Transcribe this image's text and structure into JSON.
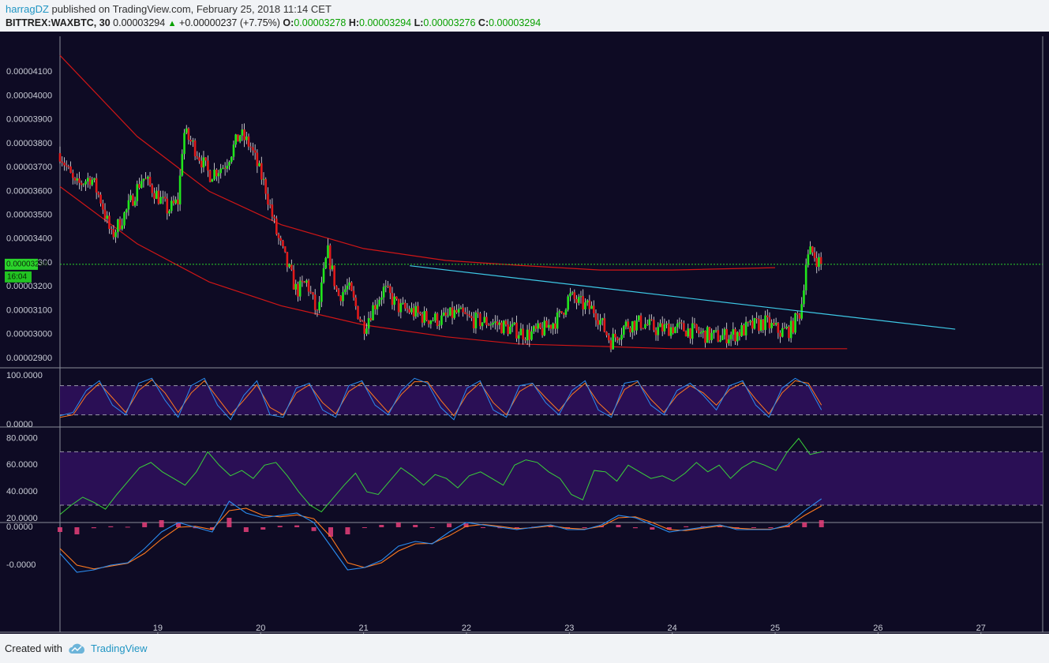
{
  "header": {
    "author": "harragDZ",
    "published_text": "published on TradingView.com, February 25, 2018 11:14 CET",
    "symbol": "BITTREX:WAXBTC, 30",
    "last_price": "0.00003294",
    "change_arrow": "▲",
    "change": "+0.00000237 (+7.75%)",
    "o_label": "O:",
    "o_value": "0.00003278",
    "h_label": "H:",
    "h_value": "0.00003294",
    "l_label": "L:",
    "l_value": "0.00003276",
    "c_label": "C:",
    "c_value": "0.00003294"
  },
  "footer": {
    "created_with": "Created with",
    "brand": "TradingView"
  },
  "colors": {
    "background": "#0e0b24",
    "candle_up": "#21e61c",
    "candle_down": "#e01a1a",
    "wick": "#e8e8e8",
    "trendline": "#3ec9e6",
    "channel": "#d01616",
    "last_price_line": "#2bd42b",
    "stoch_k": "#2b8cf0",
    "stoch_d": "#ff7a1f",
    "rsi": "#3ad13a",
    "band_fill": "#2a0f55",
    "macd_hist": "#e8407a"
  },
  "chart_data": [
    {
      "type": "candlestick",
      "name": "Price",
      "interval": "30",
      "y_ticks": [
        "0.00004100",
        "0.00004000",
        "0.00003900",
        "0.00003800",
        "0.00003700",
        "0.00003600",
        "0.00003500",
        "0.00003400",
        "0.00003300",
        "0.00003200",
        "0.00003100",
        "0.00003000",
        "0.00002900"
      ],
      "ylim": [
        2.86e-05,
        4.25e-05
      ],
      "x_ticks": [
        "19",
        "20",
        "21",
        "22",
        "23",
        "24",
        "25",
        "26",
        "27"
      ],
      "xlim": [
        18.05,
        27.6
      ],
      "last_price_label": "0.00003294",
      "countdown_label": "16:04",
      "close_series": {
        "x": [
          18.05,
          18.2,
          18.35,
          18.45,
          18.55,
          18.7,
          18.85,
          18.95,
          19.1,
          19.2,
          19.25,
          19.35,
          19.5,
          19.65,
          19.8,
          19.9,
          20.05,
          20.15,
          20.25,
          20.35,
          20.45,
          20.55,
          20.65,
          20.75,
          20.85,
          21.0,
          21.1,
          21.2,
          21.35,
          21.45,
          21.6,
          21.75,
          21.9,
          22.05,
          22.25,
          22.45,
          22.6,
          22.75,
          22.9,
          23.0,
          23.1,
          23.25,
          23.4,
          23.55,
          23.7,
          23.85,
          24.0,
          24.15,
          24.3,
          24.45,
          24.6,
          24.75,
          24.9,
          25.05,
          25.15,
          25.25,
          25.3,
          25.35,
          25.45
        ],
        "y": [
          3.76e-05,
          3.62e-05,
          3.66e-05,
          3.56e-05,
          3.41e-05,
          3.52e-05,
          3.66e-05,
          3.61e-05,
          3.52e-05,
          3.56e-05,
          3.85e-05,
          3.79e-05,
          3.67e-05,
          3.71e-05,
          3.84e-05,
          3.79e-05,
          3.61e-05,
          3.43e-05,
          3.3e-05,
          3.18e-05,
          3.22e-05,
          3.08e-05,
          3.35e-05,
          3.16e-05,
          3.2e-05,
          3.03e-05,
          3.12e-05,
          3.19e-05,
          3.11e-05,
          3.1e-05,
          3.07e-05,
          3.06e-05,
          3.09e-05,
          3.06e-05,
          3.05e-05,
          3.02e-05,
          3e-05,
          3.02e-05,
          3.07e-05,
          3.16e-05,
          3.13e-05,
          3.1e-05,
          2.97e-05,
          3.04e-05,
          3.05e-05,
          3.02e-05,
          3.03e-05,
          3.02e-05,
          3e-05,
          2.99e-05,
          3e-05,
          3.03e-05,
          3.05e-05,
          3.01e-05,
          3.02e-05,
          3.1e-05,
          3.3e-05,
          3.35e-05,
          3.29e-05
        ]
      },
      "trendline": {
        "x": [
          21.45,
          26.75
        ],
        "y": [
          3.288e-05,
          3.022e-05
        ]
      },
      "channel_upper": {
        "x": [
          18.05,
          18.8,
          19.5,
          20.2,
          21.0,
          21.8,
          22.5,
          23.3,
          24.0,
          25.0
        ],
        "y": [
          4.17e-05,
          3.83e-05,
          3.6e-05,
          3.46e-05,
          3.36e-05,
          3.31e-05,
          3.29e-05,
          3.27e-05,
          3.27e-05,
          3.28e-05
        ]
      },
      "channel_lower": {
        "x": [
          18.05,
          18.8,
          19.5,
          20.2,
          21.0,
          21.8,
          22.5,
          23.3,
          24.0,
          24.8,
          25.7
        ],
        "y": [
          3.62e-05,
          3.38e-05,
          3.22e-05,
          3.12e-05,
          3.04e-05,
          2.99e-05,
          2.96e-05,
          2.95e-05,
          2.94e-05,
          2.94e-05,
          2.94e-05
        ]
      }
    },
    {
      "type": "line",
      "name": "Stochastic",
      "y_ticks": [
        "100.0000",
        "0.0000"
      ],
      "ylim": [
        -5,
        115
      ],
      "bands": [
        20,
        80
      ],
      "series": [
        {
          "values": [
            18,
            25,
            70,
            90,
            40,
            20,
            85,
            95,
            50,
            15,
            80,
            95,
            40,
            10,
            60,
            90,
            20,
            15,
            75,
            85,
            30,
            15,
            80,
            90,
            40,
            20,
            70,
            95,
            85,
            35,
            10,
            75,
            90,
            30,
            15,
            80,
            85,
            45,
            20,
            70,
            90,
            30,
            15,
            85,
            90,
            40,
            20,
            70,
            85,
            60,
            30,
            80,
            90,
            40,
            15,
            75,
            95,
            80,
            30
          ]
        },
        {
          "values": [
            15,
            20,
            60,
            85,
            55,
            25,
            70,
            92,
            65,
            25,
            65,
            90,
            55,
            20,
            50,
            82,
            35,
            20,
            65,
            82,
            45,
            22,
            68,
            86,
            55,
            25,
            62,
            88,
            88,
            50,
            18,
            62,
            86,
            45,
            20,
            68,
            84,
            55,
            28,
            62,
            85,
            45,
            20,
            72,
            88,
            52,
            25,
            60,
            80,
            65,
            40,
            72,
            86,
            52,
            22,
            65,
            90,
            85,
            40
          ]
        }
      ]
    },
    {
      "type": "line",
      "name": "RSI",
      "y_ticks": [
        "80.0000",
        "60.0000",
        "40.0000",
        "20.0000"
      ],
      "ylim": [
        17,
        88
      ],
      "bands": [
        30,
        70
      ],
      "series": [
        {
          "values": [
            23,
            30,
            36,
            32,
            27,
            38,
            48,
            58,
            62,
            55,
            50,
            45,
            55,
            70,
            60,
            52,
            56,
            50,
            60,
            62,
            52,
            40,
            30,
            25,
            35,
            45,
            54,
            40,
            38,
            48,
            58,
            52,
            45,
            53,
            50,
            43,
            52,
            55,
            50,
            45,
            60,
            64,
            62,
            55,
            50,
            38,
            34,
            56,
            55,
            48,
            60,
            55,
            50,
            52,
            48,
            54,
            62,
            55,
            60,
            50,
            58,
            63,
            60,
            56,
            70,
            80,
            68,
            70
          ]
        }
      ]
    },
    {
      "type": "line",
      "name": "MACD",
      "y_ticks": [
        "0.0000",
        "-0.0000"
      ],
      "series": [
        {
          "values": [
            -0.55,
            -0.95,
            -0.9,
            -0.8,
            -0.75,
            -0.45,
            -0.1,
            0.1,
            0.0,
            -0.1,
            0.55,
            0.3,
            0.2,
            0.25,
            0.3,
            0.1,
            -0.4,
            -0.9,
            -0.85,
            -0.7,
            -0.4,
            -0.3,
            -0.35,
            -0.1,
            0.1,
            0.05,
            0.0,
            -0.05,
            0.0,
            0.05,
            -0.05,
            -0.05,
            0.05,
            0.25,
            0.2,
            0.05,
            -0.1,
            -0.05,
            0.0,
            0.05,
            -0.05,
            -0.05,
            -0.05,
            0.05,
            0.35,
            0.6
          ]
        },
        {
          "values": [
            -0.45,
            -0.8,
            -0.88,
            -0.82,
            -0.76,
            -0.55,
            -0.25,
            0.0,
            0.02,
            -0.05,
            0.35,
            0.4,
            0.25,
            0.22,
            0.26,
            0.18,
            -0.2,
            -0.75,
            -0.85,
            -0.75,
            -0.5,
            -0.35,
            -0.34,
            -0.18,
            0.02,
            0.06,
            0.02,
            -0.03,
            -0.01,
            0.03,
            -0.02,
            -0.04,
            0.02,
            0.2,
            0.22,
            0.1,
            -0.05,
            -0.07,
            -0.02,
            0.03,
            -0.02,
            -0.04,
            -0.04,
            0.02,
            0.25,
            0.45
          ]
        }
      ],
      "histogram": [
        -0.1,
        -0.15,
        -0.02,
        0.02,
        0.01,
        0.1,
        0.15,
        0.1,
        -0.02,
        -0.05,
        0.2,
        -0.1,
        -0.05,
        0.03,
        0.04,
        -0.08,
        -0.2,
        -0.15,
        0.0,
        0.05,
        0.1,
        0.05,
        -0.01,
        0.08,
        0.08,
        -0.01,
        -0.02,
        -0.02,
        0.01,
        0.02,
        -0.03,
        -0.01,
        0.03,
        0.05,
        -0.02,
        -0.05,
        -0.05,
        0.02,
        0.02,
        0.02,
        -0.03,
        -0.01,
        -0.01,
        0.03,
        0.1,
        0.15
      ]
    }
  ]
}
